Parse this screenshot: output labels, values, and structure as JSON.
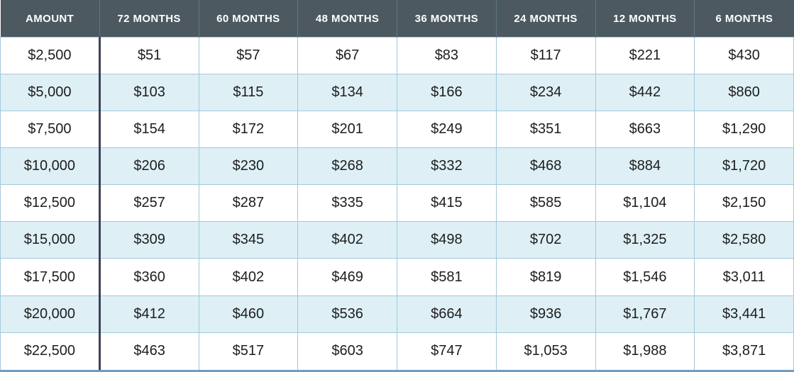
{
  "chart_data": {
    "type": "table",
    "title": "",
    "columns": [
      "AMOUNT",
      "72 MONTHS",
      "60 MONTHS",
      "48 MONTHS",
      "36 MONTHS",
      "24 MONTHS",
      "12 MONTHS",
      "6 MONTHS"
    ],
    "rows": [
      [
        "$2,500",
        "$51",
        "$57",
        "$67",
        "$83",
        "$117",
        "$221",
        "$430"
      ],
      [
        "$5,000",
        "$103",
        "$115",
        "$134",
        "$166",
        "$234",
        "$442",
        "$860"
      ],
      [
        "$7,500",
        "$154",
        "$172",
        "$201",
        "$249",
        "$351",
        "$663",
        "$1,290"
      ],
      [
        "$10,000",
        "$206",
        "$230",
        "$268",
        "$332",
        "$468",
        "$884",
        "$1,720"
      ],
      [
        "$12,500",
        "$257",
        "$287",
        "$335",
        "$415",
        "$585",
        "$1,104",
        "$2,150"
      ],
      [
        "$15,000",
        "$309",
        "$345",
        "$402",
        "$498",
        "$702",
        "$1,325",
        "$2,580"
      ],
      [
        "$17,500",
        "$360",
        "$402",
        "$469",
        "$581",
        "$819",
        "$1,546",
        "$3,011"
      ],
      [
        "$20,000",
        "$412",
        "$460",
        "$536",
        "$664",
        "$936",
        "$1,767",
        "$3,441"
      ],
      [
        "$22,500",
        "$463",
        "$517",
        "$603",
        "$747",
        "$1,053",
        "$1,988",
        "$3,871"
      ]
    ],
    "layout": {
      "striped": true,
      "stripe_rows": "even",
      "header_position": "top",
      "amount_column_divider": true
    }
  },
  "colors": {
    "header_bg": "#4c5961",
    "header_text": "#ffffff",
    "header_divider": "#5e7682",
    "row_bg": "#ffffff",
    "row_alt_bg": "#def0f6",
    "cell_border": "#a2c9da",
    "amount_divider": "#3d4157",
    "bottom_border": "#6e9cc2",
    "cell_text": "#1d1d1d"
  }
}
